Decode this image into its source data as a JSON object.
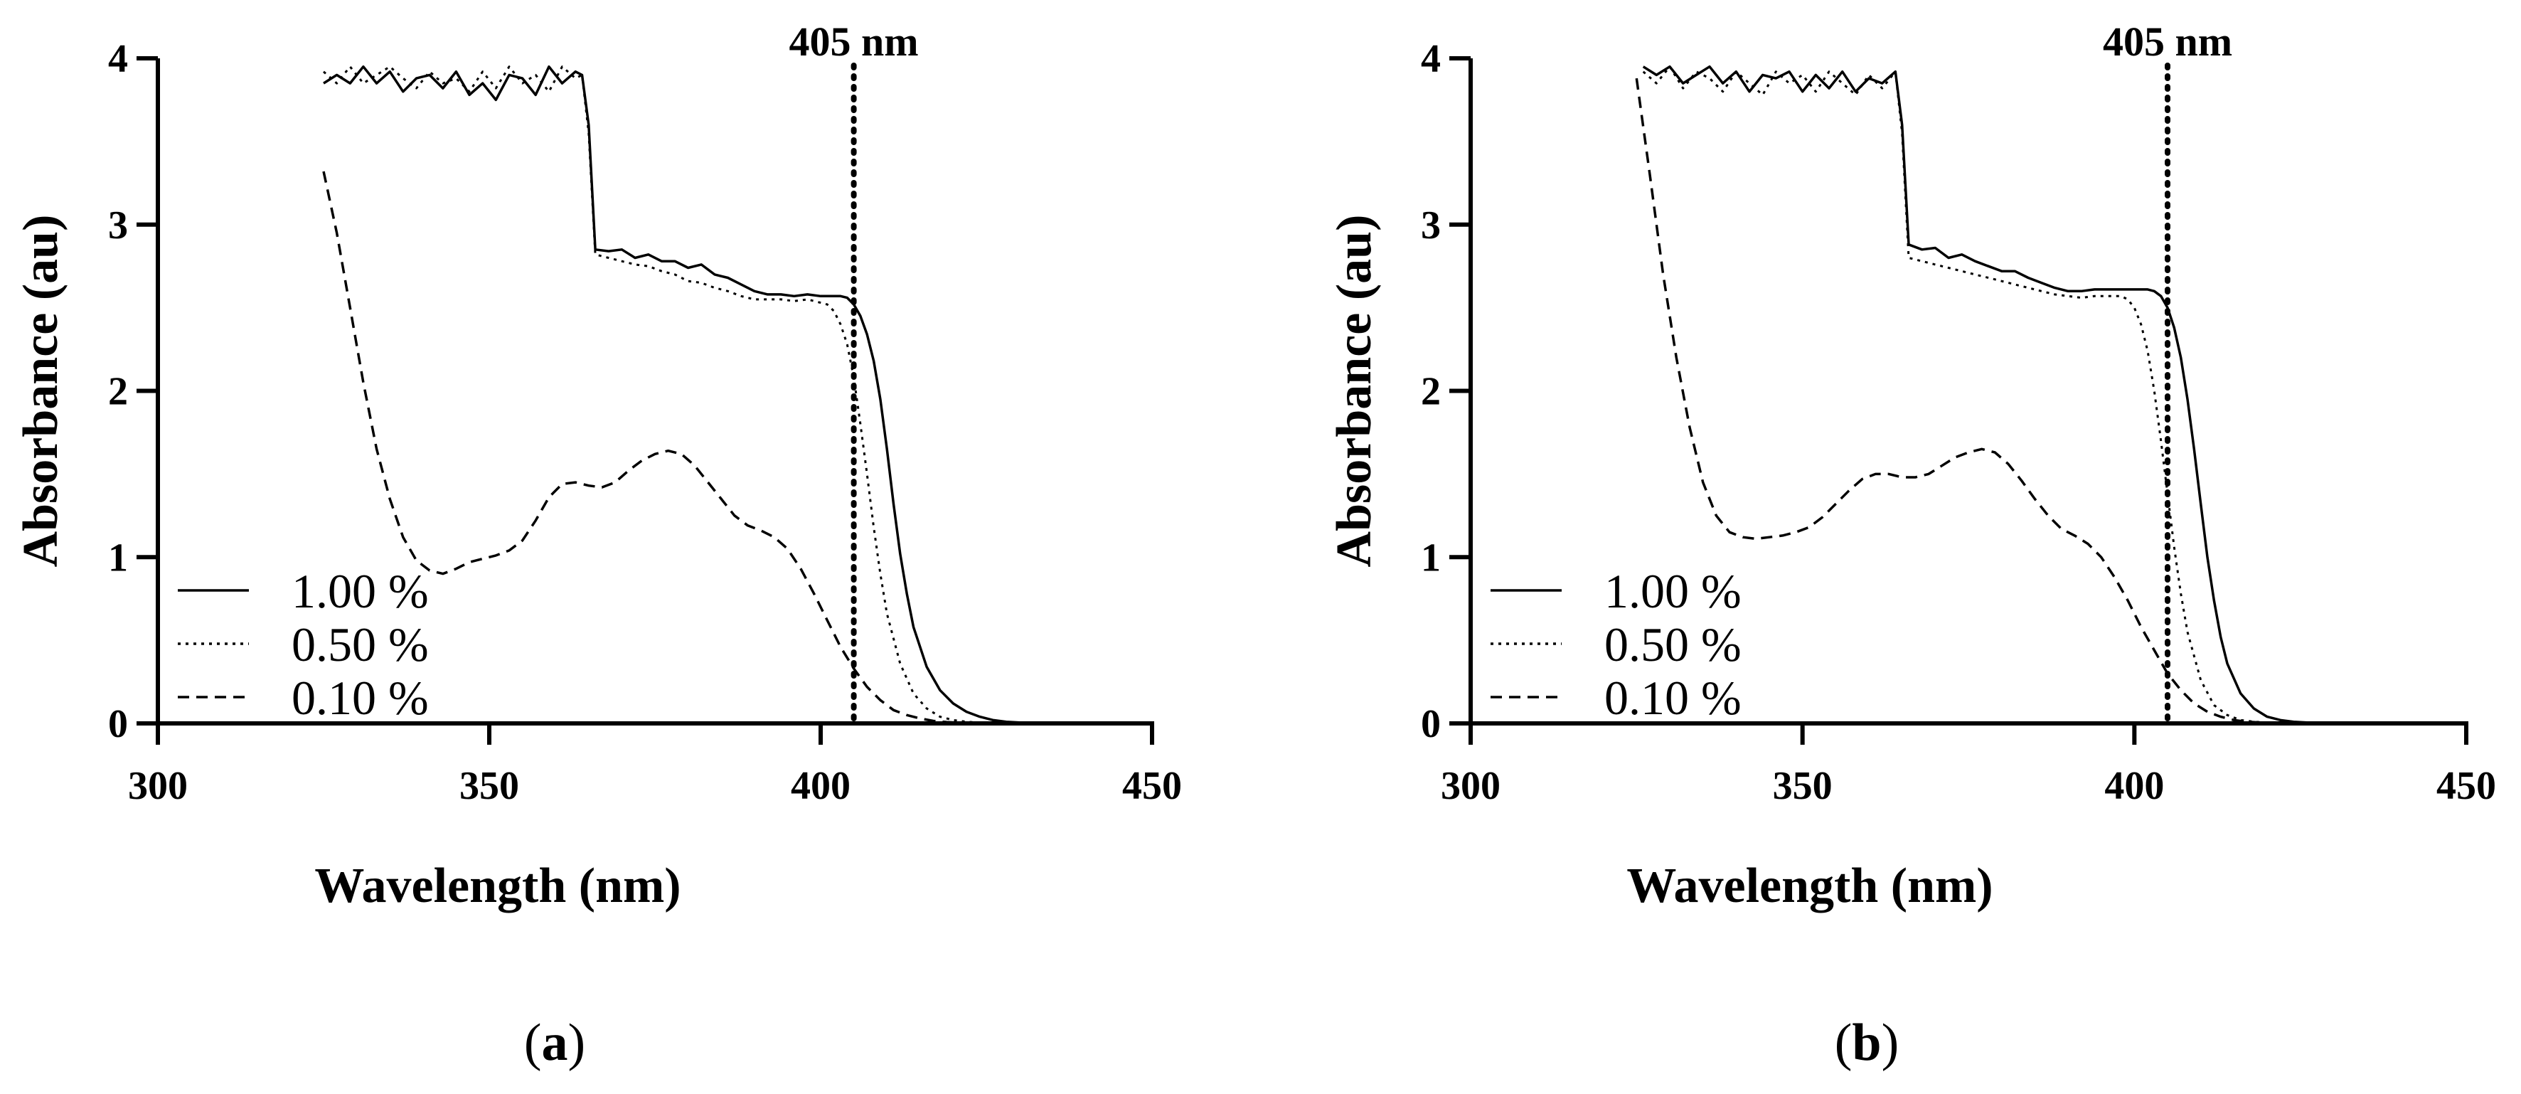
{
  "chart_data": [
    {
      "panel": "a",
      "caption_label": "a",
      "type": "line",
      "xlabel": "Wavelength (nm)",
      "ylabel": "Absorbance (au)",
      "xlim": [
        300,
        450
      ],
      "ylim": [
        0,
        4
      ],
      "xticks": [
        300,
        350,
        400,
        450
      ],
      "yticks": [
        0,
        1,
        2,
        3,
        4
      ],
      "vline": {
        "x": 405,
        "label": "405 nm"
      },
      "legend_position": "bottom-left",
      "series": [
        {
          "name": "1.00 %",
          "style": "solid",
          "x": [
            325,
            327,
            329,
            331,
            333,
            335,
            337,
            339,
            341,
            343,
            345,
            347,
            349,
            351,
            353,
            355,
            357,
            359,
            361,
            363,
            364,
            365,
            366,
            368,
            370,
            372,
            374,
            376,
            378,
            380,
            382,
            384,
            386,
            388,
            390,
            392,
            394,
            396,
            398,
            400,
            402,
            403,
            404,
            405,
            406,
            407,
            408,
            409,
            410,
            411,
            412,
            413,
            414,
            416,
            418,
            420,
            422,
            424,
            426,
            428,
            430,
            432,
            434,
            436
          ],
          "y": [
            3.85,
            3.9,
            3.85,
            3.95,
            3.85,
            3.92,
            3.8,
            3.88,
            3.9,
            3.82,
            3.92,
            3.78,
            3.85,
            3.75,
            3.9,
            3.88,
            3.78,
            3.95,
            3.85,
            3.92,
            3.9,
            3.6,
            2.85,
            2.84,
            2.85,
            2.8,
            2.82,
            2.78,
            2.78,
            2.74,
            2.76,
            2.7,
            2.68,
            2.64,
            2.6,
            2.58,
            2.58,
            2.57,
            2.58,
            2.57,
            2.57,
            2.57,
            2.56,
            2.52,
            2.45,
            2.34,
            2.18,
            1.95,
            1.65,
            1.32,
            1.02,
            0.78,
            0.58,
            0.34,
            0.2,
            0.12,
            0.07,
            0.04,
            0.02,
            0.01,
            0.005,
            0.002,
            0.001,
            0.0
          ]
        },
        {
          "name": "0.50 %",
          "style": "dotted",
          "x": [
            325,
            327,
            329,
            331,
            333,
            335,
            337,
            339,
            341,
            343,
            345,
            347,
            349,
            351,
            353,
            355,
            357,
            359,
            361,
            363,
            364,
            365,
            366,
            368,
            370,
            372,
            374,
            376,
            378,
            380,
            382,
            384,
            386,
            388,
            390,
            392,
            394,
            396,
            398,
            400,
            401,
            402,
            403,
            404,
            405,
            406,
            407,
            408,
            409,
            410,
            412,
            414,
            416,
            418,
            420,
            422,
            424,
            426,
            428,
            430,
            432
          ],
          "y": [
            3.92,
            3.85,
            3.95,
            3.85,
            3.9,
            3.95,
            3.88,
            3.82,
            3.92,
            3.85,
            3.88,
            3.8,
            3.92,
            3.82,
            3.95,
            3.85,
            3.9,
            3.8,
            3.95,
            3.88,
            3.9,
            3.55,
            2.82,
            2.8,
            2.78,
            2.76,
            2.75,
            2.72,
            2.7,
            2.66,
            2.65,
            2.62,
            2.6,
            2.57,
            2.55,
            2.55,
            2.55,
            2.54,
            2.55,
            2.53,
            2.52,
            2.48,
            2.4,
            2.28,
            2.08,
            1.8,
            1.5,
            1.18,
            0.9,
            0.66,
            0.36,
            0.18,
            0.09,
            0.04,
            0.02,
            0.01,
            0.005,
            0.002,
            0.001,
            0.0,
            0.0
          ]
        },
        {
          "name": "0.10 %",
          "style": "dashed",
          "x": [
            325,
            327,
            329,
            331,
            333,
            335,
            337,
            339,
            341,
            343,
            345,
            347,
            349,
            351,
            353,
            355,
            357,
            359,
            361,
            363,
            365,
            367,
            369,
            371,
            373,
            375,
            377,
            379,
            381,
            383,
            385,
            387,
            389,
            391,
            393,
            395,
            397,
            399,
            401,
            403,
            405,
            407,
            409,
            411,
            413,
            415,
            417,
            419,
            421,
            423,
            425,
            427,
            429,
            431
          ],
          "y": [
            3.32,
            2.95,
            2.5,
            2.05,
            1.65,
            1.35,
            1.12,
            0.98,
            0.92,
            0.9,
            0.93,
            0.97,
            0.99,
            1.01,
            1.04,
            1.1,
            1.22,
            1.36,
            1.44,
            1.45,
            1.43,
            1.42,
            1.45,
            1.52,
            1.58,
            1.62,
            1.64,
            1.62,
            1.55,
            1.45,
            1.35,
            1.25,
            1.19,
            1.16,
            1.12,
            1.05,
            0.93,
            0.78,
            0.62,
            0.46,
            0.33,
            0.22,
            0.14,
            0.08,
            0.05,
            0.03,
            0.015,
            0.008,
            0.004,
            0.002,
            0.001,
            0.0,
            0.0,
            0.0
          ]
        }
      ]
    },
    {
      "panel": "b",
      "caption_label": "b",
      "type": "line",
      "xlabel": "Wavelength (nm)",
      "ylabel": "Absorbance (au)",
      "xlim": [
        300,
        450
      ],
      "ylim": [
        0,
        4
      ],
      "xticks": [
        300,
        350,
        400,
        450
      ],
      "yticks": [
        0,
        1,
        2,
        3,
        4
      ],
      "vline": {
        "x": 405,
        "label": "405 nm"
      },
      "legend_position": "bottom-left",
      "series": [
        {
          "name": "1.00 %",
          "style": "solid",
          "x": [
            326,
            328,
            330,
            332,
            334,
            336,
            338,
            340,
            342,
            344,
            346,
            348,
            350,
            352,
            354,
            356,
            358,
            360,
            362,
            364,
            365,
            366,
            368,
            370,
            372,
            374,
            376,
            378,
            380,
            382,
            384,
            386,
            388,
            390,
            392,
            394,
            396,
            398,
            400,
            402,
            403,
            404,
            405,
            406,
            407,
            408,
            409,
            410,
            411,
            412,
            413,
            414,
            416,
            418,
            420,
            422,
            424,
            426,
            428,
            430,
            432
          ],
          "y": [
            3.95,
            3.9,
            3.95,
            3.85,
            3.9,
            3.95,
            3.85,
            3.92,
            3.8,
            3.9,
            3.88,
            3.92,
            3.8,
            3.9,
            3.82,
            3.92,
            3.8,
            3.88,
            3.85,
            3.92,
            3.6,
            2.88,
            2.85,
            2.86,
            2.8,
            2.82,
            2.78,
            2.75,
            2.72,
            2.72,
            2.68,
            2.65,
            2.62,
            2.6,
            2.6,
            2.61,
            2.61,
            2.61,
            2.61,
            2.61,
            2.6,
            2.57,
            2.5,
            2.38,
            2.2,
            1.95,
            1.65,
            1.32,
            1.0,
            0.74,
            0.52,
            0.36,
            0.18,
            0.09,
            0.04,
            0.02,
            0.01,
            0.005,
            0.002,
            0.0,
            0.0
          ]
        },
        {
          "name": "0.50 %",
          "style": "dotted",
          "x": [
            326,
            328,
            330,
            332,
            334,
            336,
            338,
            340,
            342,
            344,
            346,
            348,
            350,
            352,
            354,
            356,
            358,
            360,
            362,
            364,
            365,
            366,
            368,
            370,
            372,
            374,
            376,
            378,
            380,
            382,
            384,
            386,
            388,
            390,
            392,
            394,
            396,
            398,
            399,
            400,
            401,
            402,
            403,
            404,
            405,
            406,
            407,
            408,
            410,
            412,
            414,
            416,
            418,
            420,
            422,
            424,
            426,
            428
          ],
          "y": [
            3.92,
            3.85,
            3.95,
            3.82,
            3.92,
            3.88,
            3.8,
            3.92,
            3.85,
            3.78,
            3.92,
            3.85,
            3.9,
            3.8,
            3.92,
            3.85,
            3.78,
            3.9,
            3.82,
            3.92,
            3.55,
            2.8,
            2.78,
            2.76,
            2.74,
            2.72,
            2.7,
            2.68,
            2.66,
            2.64,
            2.62,
            2.6,
            2.58,
            2.57,
            2.56,
            2.57,
            2.57,
            2.57,
            2.55,
            2.5,
            2.4,
            2.24,
            2.0,
            1.7,
            1.38,
            1.06,
            0.78,
            0.55,
            0.26,
            0.11,
            0.05,
            0.02,
            0.01,
            0.005,
            0.002,
            0.001,
            0.0,
            0.0
          ]
        },
        {
          "name": "0.10 %",
          "style": "dashed",
          "x": [
            325,
            327,
            329,
            331,
            333,
            335,
            337,
            339,
            341,
            343,
            345,
            347,
            349,
            351,
            353,
            355,
            357,
            359,
            361,
            363,
            365,
            367,
            369,
            371,
            373,
            375,
            377,
            379,
            381,
            383,
            385,
            387,
            389,
            391,
            393,
            395,
            397,
            399,
            401,
            403,
            405,
            407,
            409,
            411,
            413,
            415,
            417,
            419,
            421,
            423,
            425,
            427,
            429
          ],
          "y": [
            3.88,
            3.3,
            2.7,
            2.2,
            1.78,
            1.45,
            1.25,
            1.15,
            1.12,
            1.11,
            1.12,
            1.13,
            1.15,
            1.18,
            1.24,
            1.32,
            1.4,
            1.47,
            1.5,
            1.5,
            1.48,
            1.48,
            1.5,
            1.55,
            1.6,
            1.63,
            1.65,
            1.63,
            1.56,
            1.46,
            1.35,
            1.25,
            1.17,
            1.13,
            1.08,
            1.0,
            0.88,
            0.74,
            0.58,
            0.44,
            0.3,
            0.2,
            0.12,
            0.07,
            0.04,
            0.02,
            0.01,
            0.005,
            0.002,
            0.001,
            0.0,
            0.0,
            0.0
          ]
        }
      ]
    }
  ]
}
